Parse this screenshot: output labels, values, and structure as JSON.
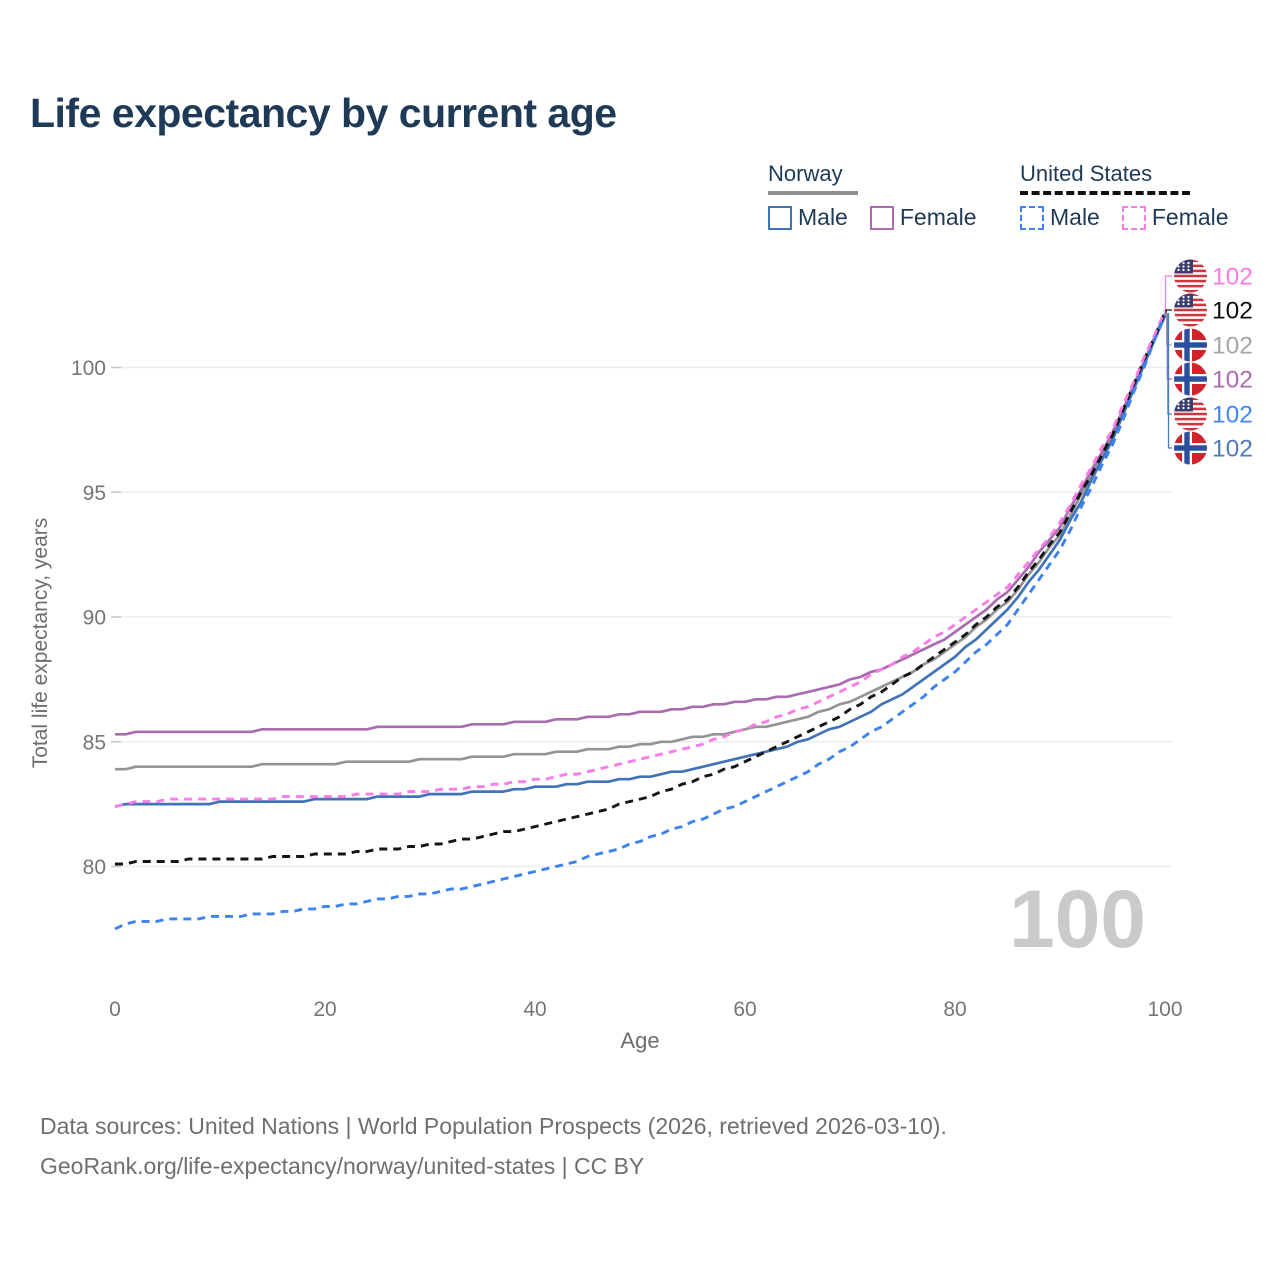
{
  "title": "Life expectancy by current age",
  "legend": {
    "groups": [
      {
        "label": "Norway",
        "line_style": "solid",
        "line_color": "#8e8e8e",
        "items": [
          {
            "label": "Male",
            "color": "#4073b8",
            "style": "solid"
          },
          {
            "label": "Female",
            "color": "#aa6cb0",
            "style": "solid"
          }
        ]
      },
      {
        "label": "United States",
        "line_style": "dashed",
        "line_color": "#111111",
        "items": [
          {
            "label": "Male",
            "color": "#3d82f2",
            "style": "dashed"
          },
          {
            "label": "Female",
            "color": "#fb7ce6",
            "style": "dashed"
          }
        ]
      }
    ]
  },
  "chart_data": {
    "type": "line",
    "title": "Life expectancy by current age",
    "xlabel": "Age",
    "ylabel": "Total life expectancy, years",
    "xlim": [
      0,
      100
    ],
    "ylim": [
      77,
      103
    ],
    "x_ticks": [
      0,
      20,
      40,
      60,
      80,
      100
    ],
    "y_ticks": [
      80,
      85,
      90,
      95,
      100
    ],
    "grid": "horizontal",
    "legend_position": "top-right",
    "age_counter": "100",
    "x": [
      0,
      2,
      5,
      10,
      15,
      20,
      25,
      30,
      35,
      40,
      45,
      50,
      55,
      60,
      65,
      70,
      75,
      80,
      85,
      90,
      95,
      100
    ],
    "series": [
      {
        "name": "Norway (both sexes)",
        "country": "Norway",
        "sex": "All",
        "color": "#949494",
        "dashed": false,
        "end_label": "102",
        "end_flag": "norway",
        "values": [
          83.85,
          83.95,
          83.98,
          84.02,
          84.06,
          84.12,
          84.2,
          84.28,
          84.38,
          84.5,
          84.66,
          84.88,
          85.15,
          85.48,
          85.9,
          86.6,
          87.55,
          88.85,
          90.6,
          93.3,
          97.25,
          102.18
        ]
      },
      {
        "name": "Norway Female",
        "country": "Norway",
        "sex": "Female",
        "color": "#aa6cb0",
        "dashed": false,
        "end_label": "102",
        "end_flag": "norway",
        "values": [
          85.25,
          85.38,
          85.4,
          85.43,
          85.46,
          85.5,
          85.55,
          85.6,
          85.68,
          85.8,
          85.95,
          86.15,
          86.38,
          86.62,
          86.9,
          87.45,
          88.25,
          89.35,
          91.0,
          93.6,
          97.4,
          102.14
        ]
      },
      {
        "name": "Norway Male",
        "country": "Norway",
        "sex": "Male",
        "color": "#4073b8",
        "dashed": false,
        "end_label": "102",
        "end_flag": "norway",
        "values": [
          82.42,
          82.48,
          82.5,
          82.55,
          82.6,
          82.68,
          82.76,
          82.85,
          82.98,
          83.15,
          83.35,
          83.58,
          83.9,
          84.35,
          84.95,
          85.8,
          86.9,
          88.4,
          90.25,
          93.05,
          97.05,
          102.06
        ]
      },
      {
        "name": "United States (both sexes)",
        "country": "United States",
        "sex": "All",
        "color": "#141414",
        "dashed": true,
        "end_label": "102",
        "end_flag": "us",
        "values": [
          80.05,
          80.2,
          80.24,
          80.28,
          80.35,
          80.48,
          80.65,
          80.88,
          81.2,
          81.6,
          82.1,
          82.7,
          83.4,
          84.2,
          85.15,
          86.25,
          87.55,
          89.0,
          90.7,
          93.4,
          97.3,
          102.22
        ]
      },
      {
        "name": "United States Female",
        "country": "United States",
        "sex": "Female",
        "color": "#fb7ce6",
        "dashed": true,
        "end_label": "102",
        "end_flag": "us",
        "values": [
          82.35,
          82.62,
          82.66,
          82.7,
          82.74,
          82.8,
          82.9,
          83.02,
          83.2,
          83.45,
          83.8,
          84.25,
          84.8,
          85.5,
          86.25,
          87.2,
          88.35,
          89.7,
          91.2,
          93.75,
          97.5,
          102.28
        ]
      },
      {
        "name": "United States Male",
        "country": "United States",
        "sex": "Male",
        "color": "#3d82f2",
        "dashed": true,
        "end_label": "102",
        "end_flag": "us",
        "values": [
          77.5,
          77.8,
          77.85,
          78.0,
          78.12,
          78.35,
          78.65,
          78.9,
          79.3,
          79.8,
          80.35,
          81.0,
          81.75,
          82.6,
          83.6,
          84.8,
          86.2,
          87.8,
          89.7,
          92.7,
          96.9,
          102.1
        ]
      }
    ],
    "end_labels": [
      {
        "flag": "us",
        "value": "102",
        "color": "#fb7ce6",
        "series": "United States Female"
      },
      {
        "flag": "us",
        "value": "102",
        "color": "#111111",
        "series": "United States (both sexes)"
      },
      {
        "flag": "norway",
        "value": "102",
        "color": "#a6a6a6",
        "series": "Norway (both sexes)"
      },
      {
        "flag": "norway",
        "value": "102",
        "color": "#aa6cb0",
        "series": "Norway Female"
      },
      {
        "flag": "us",
        "value": "102",
        "color": "#4285f4",
        "series": "United States Male"
      },
      {
        "flag": "norway",
        "value": "102",
        "color": "#4e79bc",
        "series": "Norway Male"
      }
    ]
  },
  "footer": {
    "line1": "Data sources: United Nations | World Population Prospects (2026, retrieved 2026-03-10).",
    "line2": "GeoRank.org/life-expectancy/norway/united-states | CC BY"
  }
}
